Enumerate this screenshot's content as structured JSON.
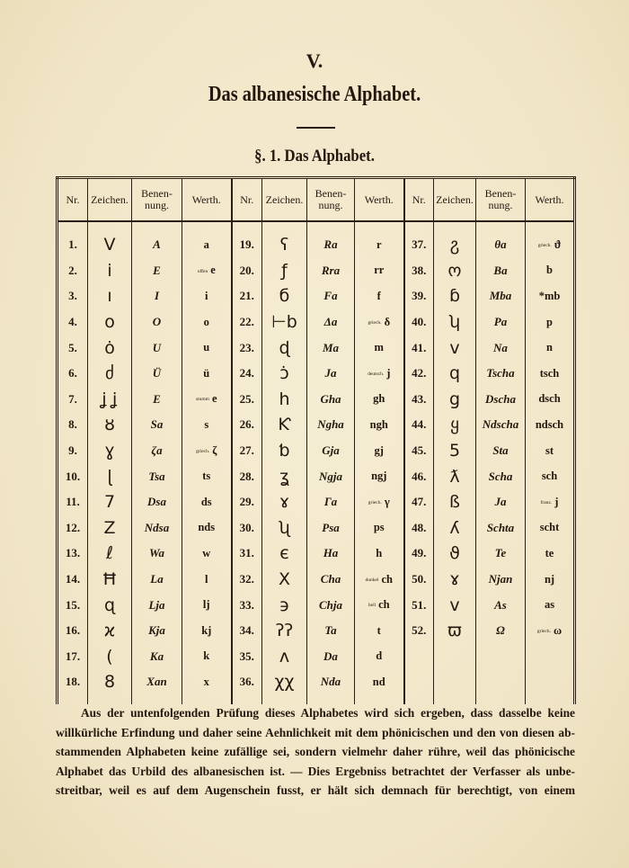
{
  "chapter": "V.",
  "title": "Das albanesische Alphabet.",
  "section": "§. 1. Das Alphabet.",
  "table": {
    "headers": [
      "Nr.",
      "Zeichen.",
      "Benen-\nnung.",
      "Werth."
    ],
    "rows": [
      [
        {
          "nr": "1.",
          "z": "V",
          "b": "A",
          "w": "a"
        },
        {
          "nr": "19.",
          "z": "ʕ",
          "b": "Ra",
          "w": "r"
        },
        {
          "nr": "37.",
          "z": "ჷ",
          "b": "θa",
          "w": "ϑ",
          "wn": "griech."
        }
      ],
      [
        {
          "nr": "2.",
          "z": "i",
          "b": "E",
          "w": "e",
          "wn": "offen"
        },
        {
          "nr": "20.",
          "z": "ƒ",
          "b": "Rra",
          "w": "rr"
        },
        {
          "nr": "38.",
          "z": "ო",
          "b": "Ba",
          "w": "b"
        }
      ],
      [
        {
          "nr": "3.",
          "z": "ı",
          "b": "I",
          "w": "i"
        },
        {
          "nr": "21.",
          "z": "б",
          "b": "Fa",
          "w": "f"
        },
        {
          "nr": "39.",
          "z": "ɓ",
          "b": "Mba",
          "w": "*mb"
        }
      ],
      [
        {
          "nr": "4.",
          "z": "o",
          "b": "O",
          "w": "o"
        },
        {
          "nr": "22.",
          "z": "⊢b",
          "b": "Δa",
          "w": "δ",
          "wn": "griech."
        },
        {
          "nr": "40.",
          "z": "ʮ",
          "b": "Pa",
          "w": "p"
        }
      ],
      [
        {
          "nr": "5.",
          "z": "ȯ",
          "b": "U",
          "w": "u"
        },
        {
          "nr": "23.",
          "z": "ɖ",
          "b": "Ma",
          "w": "m"
        },
        {
          "nr": "41.",
          "z": "v",
          "b": "Na",
          "w": "n"
        }
      ],
      [
        {
          "nr": "6.",
          "z": "ძ",
          "b": "Ü",
          "w": "ü"
        },
        {
          "nr": "24.",
          "z": "ɔ̇",
          "b": "Ja",
          "w": "j",
          "wn": "deutsch."
        },
        {
          "nr": "42.",
          "z": "q",
          "b": "Tscha",
          "w": "tsch"
        }
      ],
      [
        {
          "nr": "7.",
          "z": "ʝ ʝ",
          "b": "E",
          "w": "e",
          "wn": "stumm"
        },
        {
          "nr": "25.",
          "z": "h",
          "b": "Gha",
          "w": "gh"
        },
        {
          "nr": "43.",
          "z": "g",
          "b": "Dscha",
          "w": "dsch"
        }
      ],
      [
        {
          "nr": "8.",
          "z": "ȣ",
          "b": "Sa",
          "w": "s"
        },
        {
          "nr": "26.",
          "z": "Ƙ",
          "b": "Ngha",
          "w": "ngh"
        },
        {
          "nr": "44.",
          "z": "ყ",
          "b": "Ndscha",
          "w": "ndsch"
        }
      ],
      [
        {
          "nr": "9.",
          "z": "ɣ",
          "b": "ζa",
          "w": "ζ",
          "wn": "griech."
        },
        {
          "nr": "27.",
          "z": "ƅ",
          "b": "Gja",
          "w": "gj"
        },
        {
          "nr": "45.",
          "z": "5",
          "b": "Sta",
          "w": "st"
        }
      ],
      [
        {
          "nr": "10.",
          "z": "ɭ",
          "b": "Tsa",
          "w": "ts"
        },
        {
          "nr": "28.",
          "z": "ʓ",
          "b": "Ngja",
          "w": "ngj"
        },
        {
          "nr": "46.",
          "z": "ƛ",
          "b": "Scha",
          "w": "sch"
        }
      ],
      [
        {
          "nr": "11.",
          "z": "7",
          "b": "Dsa",
          "w": "ds"
        },
        {
          "nr": "29.",
          "z": "ɤ",
          "b": "Γa",
          "w": "γ",
          "wn": "griech."
        },
        {
          "nr": "47.",
          "z": "ß",
          "b": "Ja",
          "w": "j",
          "wn": "franz."
        }
      ],
      [
        {
          "nr": "12.",
          "z": "Z",
          "b": "Ndsa",
          "w": "nds"
        },
        {
          "nr": "30.",
          "z": "ʯ",
          "b": "Psa",
          "w": "ps"
        },
        {
          "nr": "48.",
          "z": "ʎ",
          "b": "Schta",
          "w": "scht"
        }
      ],
      [
        {
          "nr": "13.",
          "z": "ℓ",
          "b": "Wa",
          "w": "w"
        },
        {
          "nr": "31.",
          "z": "є",
          "b": "Ha",
          "w": "h"
        },
        {
          "nr": "49.",
          "z": "ϑ",
          "b": "Te",
          "w": "te"
        }
      ],
      [
        {
          "nr": "14.",
          "z": "Ħ",
          "b": "La",
          "w": "l"
        },
        {
          "nr": "32.",
          "z": "X",
          "b": "Cha",
          "w": "ch",
          "wn": "dunkel"
        },
        {
          "nr": "50.",
          "z": "ɤ",
          "b": "Njan",
          "w": "nj"
        }
      ],
      [
        {
          "nr": "15.",
          "z": "ɋ",
          "b": "Lja",
          "w": "lj"
        },
        {
          "nr": "33.",
          "z": "϶",
          "b": "Chja",
          "w": "ch",
          "wn": "hell"
        },
        {
          "nr": "51.",
          "z": "ᴠ",
          "b": "As",
          "w": "as"
        }
      ],
      [
        {
          "nr": "16.",
          "z": "ϰ",
          "b": "Kja",
          "w": "kj"
        },
        {
          "nr": "34.",
          "z": "ʔʔ",
          "b": "Ta",
          "w": "t"
        },
        {
          "nr": "52.",
          "z": "ϖ",
          "b": "Ω",
          "w": "ω",
          "wn": "griech."
        }
      ],
      [
        {
          "nr": "17.",
          "z": "(",
          "b": "Ka",
          "w": "k"
        },
        {
          "nr": "35.",
          "z": "ʌ",
          "b": "Da",
          "w": "d"
        },
        null
      ],
      [
        {
          "nr": "18.",
          "z": "8",
          "b": "Xan",
          "w": "x"
        },
        {
          "nr": "36.",
          "z": "χχ",
          "b": "Nda",
          "w": "nd"
        },
        null
      ]
    ]
  },
  "paragraph": [
    "Aus der untenfolgenden Prüfung dieses Alphabetes wird sich ergeben, dass dasselbe keine",
    "willkürliche Erfindung und daher seine Aehnlichkeit mit dem phönicischen und den von diesen ab-",
    "stammenden Alphabeten keine zufällige sei, sondern vielmehr daher rühre, weil das phönicische",
    "Alphabet das Urbild des albanesischen ist. — Dies Ergebniss betrachtet der Verfasser als unbe-",
    "streitbar, weil es auf dem Augenschein fusst, er hält sich demnach für berechtigt, von einem"
  ]
}
